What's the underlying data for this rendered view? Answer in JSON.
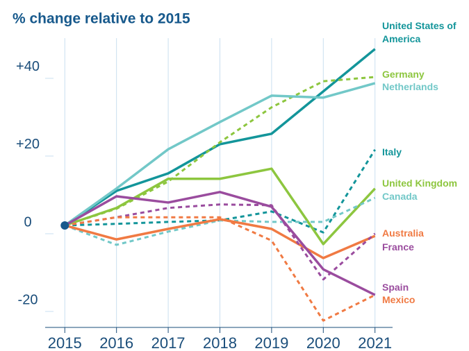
{
  "chart_data": {
    "type": "line",
    "title": "% change relative to 2015",
    "x": [
      2015,
      2016,
      2017,
      2018,
      2019,
      2020,
      2021
    ],
    "xlim": [
      2014.62,
      2021.34
    ],
    "xticks": [
      2015,
      2016,
      2017,
      2018,
      2019,
      2020,
      2021
    ],
    "ylim": [
      -26.25,
      48.2
    ],
    "yticks": [
      {
        "value": 40,
        "label": "+40"
      },
      {
        "value": 20,
        "label": "+20"
      },
      0,
      -20
    ],
    "grid": "x",
    "series": [
      {
        "name": "United States of America",
        "color": "#13959a",
        "style": "solid",
        "values": [
          0,
          8.9,
          13.4,
          20.9,
          23.6,
          34.5,
          45.4
        ]
      },
      {
        "name": "Germany",
        "color": "#8dc63f",
        "style": "dashed",
        "values": [
          0,
          4.3,
          11.3,
          21.4,
          30.4,
          37.1,
          38.2
        ]
      },
      {
        "name": "Netherlands",
        "color": "#72c8c8",
        "style": "solid",
        "values": [
          0,
          9.5,
          19.6,
          26.6,
          33.4,
          32.9,
          36.6
        ]
      },
      {
        "name": "Italy",
        "color": "#13959a",
        "style": "dashed",
        "values": [
          0,
          0.4,
          0.9,
          1.3,
          3.6,
          -1.8,
          19.5
        ]
      },
      {
        "name": "United Kingdom",
        "color": "#8dc63f",
        "style": "solid",
        "values": [
          0,
          4.5,
          12,
          12,
          14.6,
          -4.8,
          9.5
        ]
      },
      {
        "name": "Canada",
        "color": "#72c8c8",
        "style": "dashed",
        "values": [
          0,
          -5,
          -1.6,
          1.3,
          0.9,
          0.9,
          7.1
        ]
      },
      {
        "name": "Australia",
        "color": "#f07a43",
        "style": "solid",
        "values": [
          0,
          -3.6,
          -0.9,
          1.6,
          -0.9,
          -8.4,
          -2.7
        ]
      },
      {
        "name": "France",
        "color": "#9a4c9e",
        "style": "dashed",
        "values": [
          0,
          2.1,
          4.5,
          5.4,
          5.2,
          -13.9,
          -2.1
        ]
      },
      {
        "name": "Spain",
        "color": "#9a4c9e",
        "style": "solid",
        "values": [
          0,
          7.5,
          5.9,
          8.6,
          4.8,
          -11.3,
          -17.9
        ]
      },
      {
        "name": "Mexico",
        "color": "#f07a43",
        "style": "dashed",
        "values": [
          0,
          2.1,
          2.1,
          2.1,
          -3.9,
          -24.5,
          -17.9
        ]
      }
    ]
  }
}
